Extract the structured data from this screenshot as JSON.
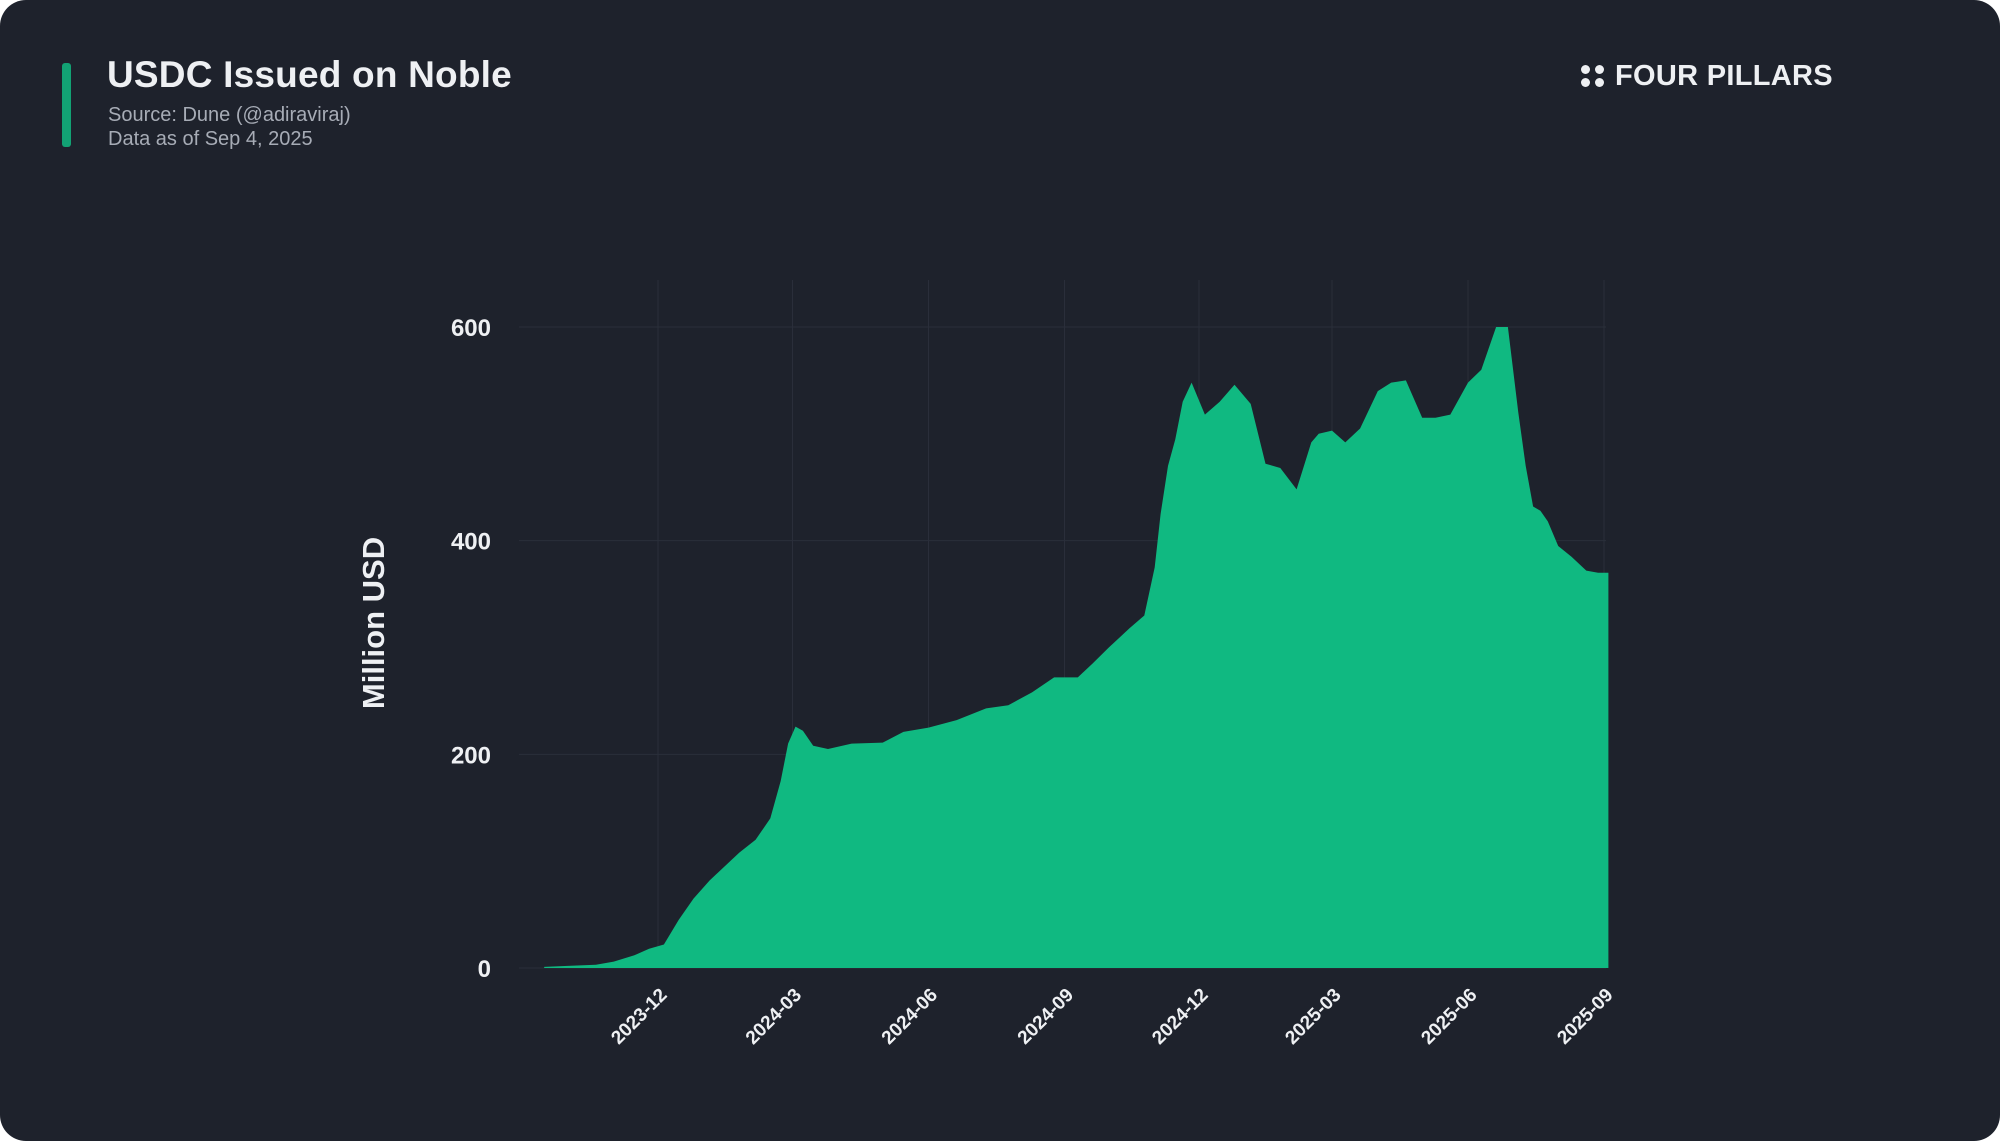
{
  "header": {
    "title": "USDC Issued on Noble",
    "source": "Source: Dune (@adiraviraj)",
    "data_as_of": "Data as of Sep 4, 2025"
  },
  "brand": {
    "logo_text": "FOUR PILLARS",
    "logo_icon": "four-dots-icon"
  },
  "colors": {
    "background": "#1e222c",
    "area_fill": "#10b981",
    "accent": "#10b981",
    "text": "#eef0f3",
    "subtext": "#a7acb6",
    "grid": "#2a2f3a"
  },
  "chart_data": {
    "type": "area",
    "title": "USDC Issued on Noble",
    "ylabel": "Million USD",
    "xlabel": "",
    "ylim": [
      0,
      620
    ],
    "yticks": [
      0,
      200,
      400,
      600
    ],
    "xlim": [
      "2023-09-15",
      "2025-09-04"
    ],
    "xticks": [
      "2023-12",
      "2024-03",
      "2024-06",
      "2024-09",
      "2024-12",
      "2025-03",
      "2025-06",
      "2025-09"
    ],
    "grid": true,
    "series": [
      {
        "name": "USDC issued",
        "x": [
          "2023-09-15",
          "2023-10-01",
          "2023-10-20",
          "2023-11-01",
          "2023-11-15",
          "2023-11-25",
          "2023-12-05",
          "2023-12-15",
          "2023-12-25",
          "2024-01-05",
          "2024-01-15",
          "2024-01-25",
          "2024-02-05",
          "2024-02-15",
          "2024-02-22",
          "2024-02-27",
          "2024-03-03",
          "2024-03-08",
          "2024-03-15",
          "2024-03-25",
          "2024-04-10",
          "2024-05-01",
          "2024-05-15",
          "2024-06-01",
          "2024-06-20",
          "2024-07-10",
          "2024-07-25",
          "2024-08-10",
          "2024-08-25",
          "2024-09-10",
          "2024-09-20",
          "2024-10-01",
          "2024-10-15",
          "2024-10-25",
          "2024-11-01",
          "2024-11-05",
          "2024-11-10",
          "2024-11-15",
          "2024-11-20",
          "2024-11-26",
          "2024-12-05",
          "2024-12-15",
          "2024-12-25",
          "2025-01-05",
          "2025-01-15",
          "2025-01-25",
          "2025-02-05",
          "2025-02-15",
          "2025-02-20",
          "2025-03-01",
          "2025-03-10",
          "2025-03-20",
          "2025-04-01",
          "2025-04-10",
          "2025-04-20",
          "2025-05-01",
          "2025-05-10",
          "2025-05-20",
          "2025-06-01",
          "2025-06-10",
          "2025-06-20",
          "2025-06-28",
          "2025-07-05",
          "2025-07-10",
          "2025-07-15",
          "2025-07-20",
          "2025-07-25",
          "2025-08-01",
          "2025-08-10",
          "2025-08-20",
          "2025-08-28",
          "2025-09-04"
        ],
        "values": [
          1,
          2,
          3,
          6,
          12,
          18,
          22,
          45,
          65,
          82,
          95,
          108,
          120,
          140,
          175,
          210,
          226,
          222,
          208,
          205,
          210,
          211,
          221,
          225,
          232,
          243,
          246,
          258,
          272,
          272,
          285,
          300,
          318,
          330,
          375,
          425,
          470,
          495,
          530,
          548,
          518,
          530,
          546,
          528,
          472,
          468,
          448,
          492,
          500,
          503,
          492,
          505,
          540,
          548,
          550,
          515,
          515,
          518,
          548,
          560,
          600,
          600,
          520,
          470,
          432,
          428,
          418,
          395,
          385,
          372,
          370,
          370
        ]
      }
    ]
  }
}
